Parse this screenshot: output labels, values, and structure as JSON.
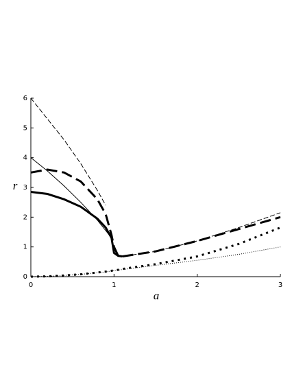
{
  "chart_data": {
    "type": "line",
    "xlabel": "a",
    "ylabel": "r",
    "x": [
      0,
      0.2,
      0.4,
      0.6,
      0.8,
      0.9,
      0.97,
      1.0,
      1.05,
      1.1,
      1.5,
      2,
      2.5,
      3
    ],
    "series": [
      {
        "color": "#000000",
        "dash": "dashed",
        "width": 1,
        "values": [
          6,
          5.3,
          4.6,
          3.8,
          2.9,
          2.4,
          null,
          null,
          0.68,
          0.68,
          0.85,
          1.2,
          1.65,
          2.15
        ]
      },
      {
        "color": "#000000",
        "dash": "solid",
        "width": 1,
        "values": [
          4,
          3.55,
          3.05,
          2.5,
          1.9,
          1.55,
          1.3,
          null,
          null,
          null,
          null,
          null,
          null,
          null
        ]
      },
      {
        "color": "#000000",
        "dash": "dashed",
        "width": 3,
        "values": [
          3.5,
          3.6,
          3.5,
          3.2,
          2.6,
          2.1,
          1.4,
          1.0,
          0.7,
          0.68,
          0.85,
          1.2,
          1.6,
          2.0
        ]
      },
      {
        "color": "#000000",
        "dash": "solid",
        "width": 3,
        "values": [
          2.85,
          2.78,
          2.6,
          2.35,
          1.95,
          1.65,
          1.3,
          0.8,
          0.7,
          0.68,
          null,
          null,
          null,
          null
        ]
      },
      {
        "color": "#000000",
        "dash": "dotted",
        "width": 3,
        "values": [
          0,
          0.01,
          0.04,
          0.08,
          0.14,
          0.17,
          0.2,
          0.21,
          0.23,
          0.26,
          0.42,
          0.68,
          1.1,
          1.65
        ]
      },
      {
        "color": "#000000",
        "dash": "dotted",
        "width": 1,
        "values": [
          0,
          0.01,
          0.04,
          0.08,
          0.13,
          0.16,
          0.19,
          0.2,
          0.22,
          0.24,
          0.38,
          0.55,
          0.75,
          1.0
        ]
      }
    ],
    "xlim": [
      0,
      3
    ],
    "xticks": [
      0,
      1,
      2,
      3
    ],
    "ylim": [
      0,
      6
    ],
    "yticks": [
      0,
      1,
      2,
      3,
      4,
      5,
      6
    ]
  }
}
